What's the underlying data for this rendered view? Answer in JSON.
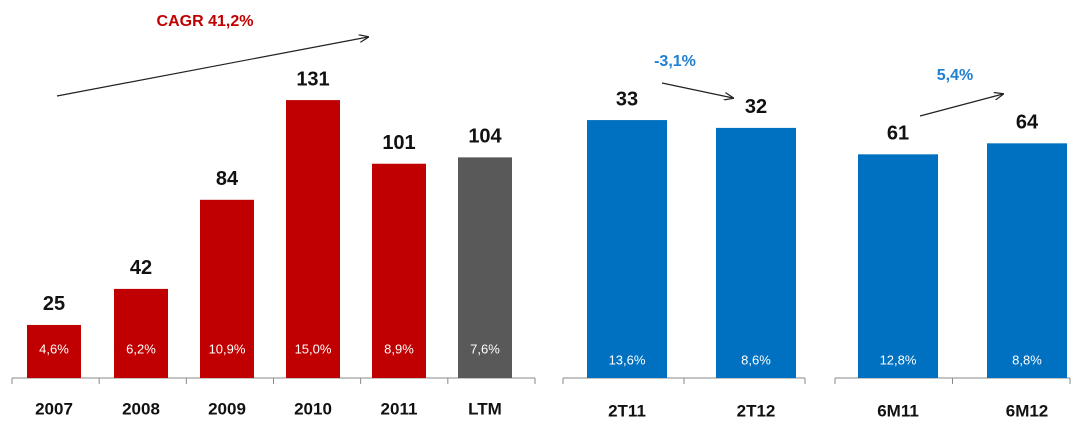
{
  "chart_data": [
    {
      "type": "bar",
      "categories": [
        "2007",
        "2008",
        "2009",
        "2010",
        "2011",
        "LTM"
      ],
      "values": [
        25,
        42,
        84,
        131,
        101,
        104
      ],
      "colors": [
        "#c00000",
        "#c00000",
        "#c00000",
        "#c00000",
        "#c00000",
        "#595959"
      ],
      "inner_labels": [
        "4,6%",
        "6,2%",
        "10,9%",
        "15,0%",
        "8,9%",
        "7,6%"
      ],
      "annotation": "CAGR 41,2%",
      "annotation_color": "#c00000",
      "ylim": [
        0,
        140
      ]
    },
    {
      "type": "bar",
      "categories": [
        "2T11",
        "2T12"
      ],
      "values": [
        33,
        32
      ],
      "colors": [
        "#0070c0",
        "#0070c0"
      ],
      "inner_labels": [
        "13,6%",
        "8,6%"
      ],
      "annotation": "-3,1%",
      "annotation_color": "#1f7fd0",
      "ylim": [
        0,
        38
      ]
    },
    {
      "type": "bar",
      "categories": [
        "6M11",
        "6M12"
      ],
      "values": [
        61,
        64
      ],
      "colors": [
        "#0070c0",
        "#0070c0"
      ],
      "inner_labels": [
        "12,8%",
        "8,8%"
      ],
      "annotation": "5,4%",
      "annotation_color": "#1f7fd0",
      "ylim": [
        0,
        81
      ]
    }
  ]
}
